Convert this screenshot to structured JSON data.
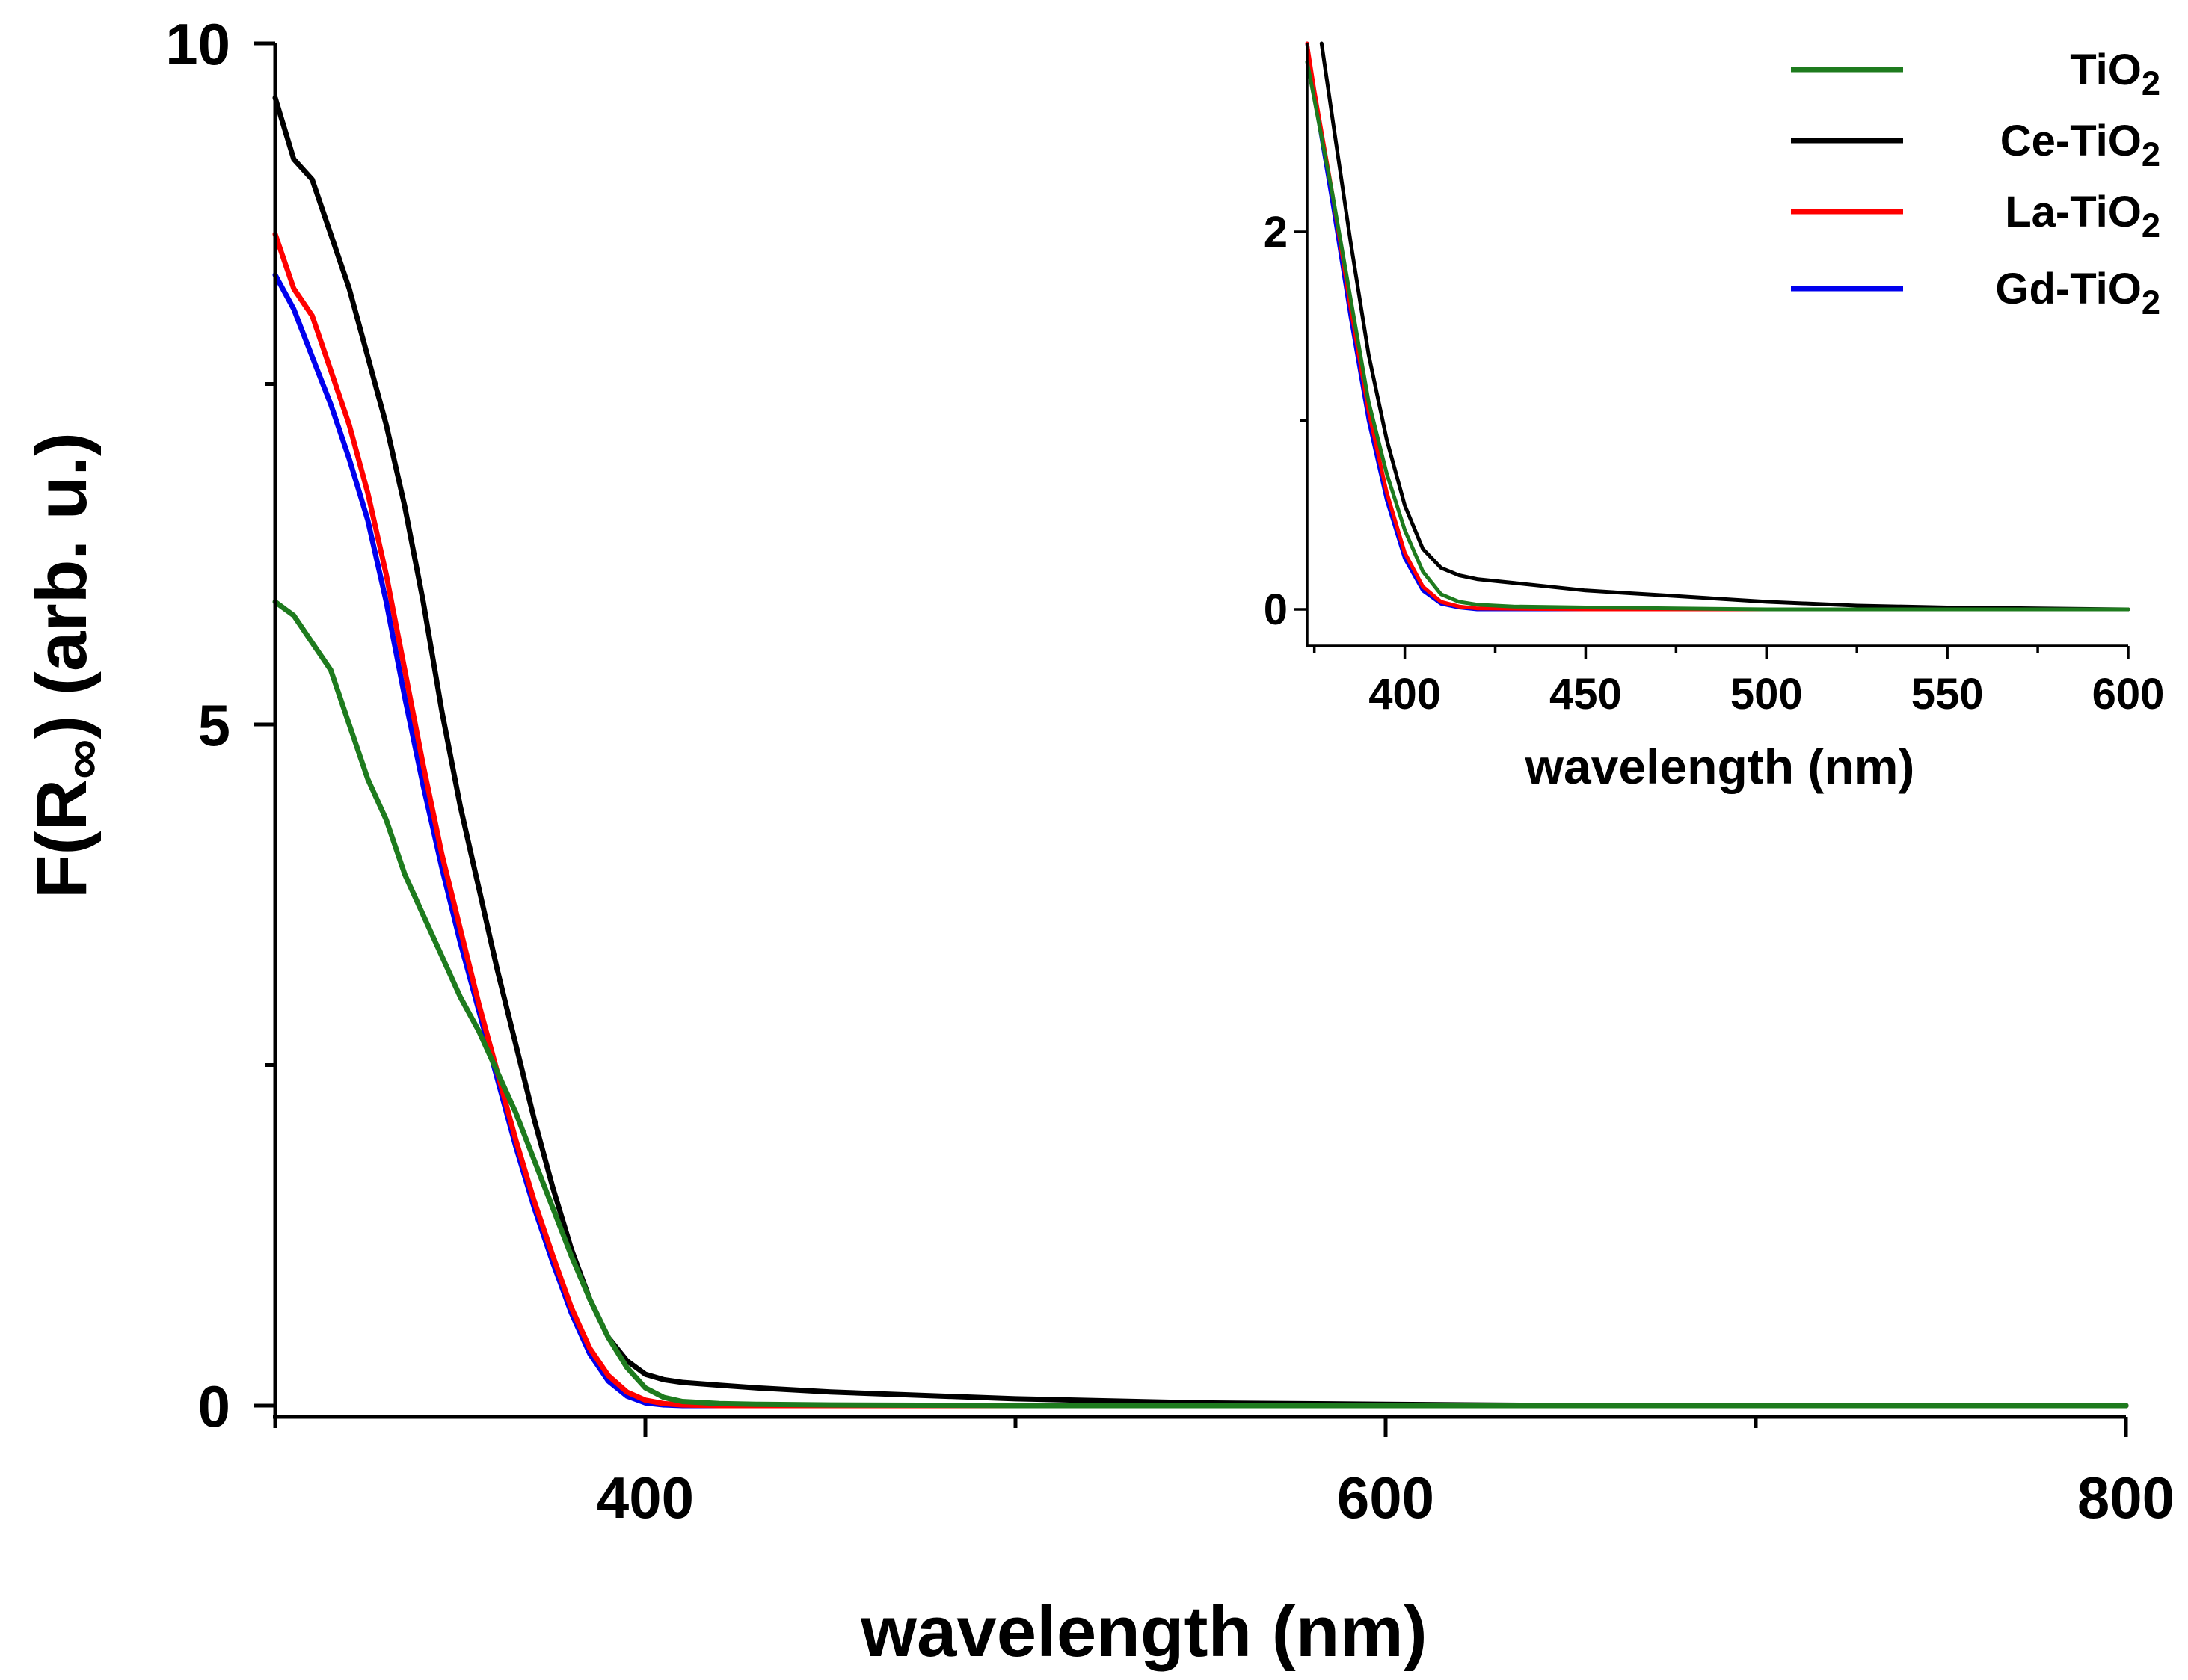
{
  "chart_data": [
    {
      "type": "line",
      "panel": "main",
      "xlabel": "wavelength (nm)",
      "ylabel_prefix": "F(R",
      "ylabel_subscript": "∞",
      "ylabel_suffix": ") (arb. u.)",
      "xlim": [
        300,
        800
      ],
      "ylim": [
        0,
        10
      ],
      "x_ticks": [
        400,
        600,
        800
      ],
      "y_ticks": [
        0,
        5,
        10
      ],
      "series": [
        {
          "name": "TiO2",
          "color": "#1e7b1e",
          "x": [
            300,
            305,
            310,
            315,
            320,
            325,
            330,
            335,
            340,
            345,
            350,
            355,
            360,
            365,
            370,
            375,
            380,
            385,
            390,
            395,
            400,
            405,
            410,
            420,
            430,
            450,
            500,
            600,
            700,
            800
          ],
          "y": [
            5.9,
            5.8,
            5.6,
            5.4,
            5.0,
            4.6,
            4.3,
            3.9,
            3.6,
            3.3,
            3.0,
            2.75,
            2.45,
            2.15,
            1.8,
            1.45,
            1.1,
            0.78,
            0.5,
            0.28,
            0.13,
            0.06,
            0.03,
            0.015,
            0.01,
            0.005,
            0.0,
            0.0,
            0.0,
            0.0
          ]
        },
        {
          "name": "Ce-TiO2",
          "color": "#000000",
          "x": [
            300,
            305,
            310,
            315,
            320,
            325,
            330,
            335,
            340,
            345,
            350,
            355,
            360,
            365,
            370,
            375,
            380,
            385,
            390,
            395,
            400,
            405,
            410,
            420,
            430,
            450,
            500,
            550,
            600,
            650,
            700,
            800
          ],
          "y": [
            9.6,
            9.15,
            9.0,
            8.6,
            8.2,
            7.7,
            7.2,
            6.6,
            5.9,
            5.1,
            4.4,
            3.8,
            3.2,
            2.65,
            2.1,
            1.6,
            1.15,
            0.78,
            0.5,
            0.33,
            0.23,
            0.19,
            0.17,
            0.15,
            0.13,
            0.1,
            0.05,
            0.02,
            0.01,
            0.0,
            0.0,
            0.0
          ]
        },
        {
          "name": "La-TiO2",
          "color": "#ff0000",
          "x": [
            300,
            305,
            310,
            315,
            320,
            325,
            330,
            335,
            340,
            345,
            350,
            355,
            360,
            365,
            370,
            375,
            380,
            385,
            390,
            395,
            400,
            405,
            410,
            420,
            450,
            500,
            600,
            800
          ],
          "y": [
            8.6,
            8.2,
            8.0,
            7.6,
            7.2,
            6.7,
            6.1,
            5.4,
            4.7,
            4.05,
            3.5,
            2.95,
            2.45,
            1.95,
            1.5,
            1.1,
            0.72,
            0.42,
            0.22,
            0.1,
            0.04,
            0.015,
            0.005,
            0.0,
            0.0,
            0.0,
            0.0,
            0.0
          ]
        },
        {
          "name": "Gd-TiO2",
          "color": "#0000ee",
          "x": [
            300,
            305,
            310,
            315,
            320,
            325,
            330,
            335,
            340,
            345,
            350,
            355,
            360,
            365,
            370,
            375,
            380,
            385,
            390,
            395,
            400,
            405,
            410,
            420,
            450,
            500,
            600,
            800
          ],
          "y": [
            8.3,
            8.05,
            7.7,
            7.35,
            6.95,
            6.5,
            5.9,
            5.2,
            4.55,
            3.95,
            3.4,
            2.9,
            2.4,
            1.9,
            1.45,
            1.05,
            0.68,
            0.38,
            0.18,
            0.07,
            0.02,
            0.005,
            0.0,
            0.0,
            0.0,
            0.0,
            0.0,
            0.0
          ]
        }
      ]
    },
    {
      "type": "line",
      "panel": "inset",
      "xlabel": "wavelength (nm)",
      "ylabel": "",
      "xlim": [
        373,
        600
      ],
      "ylim": [
        -0.2,
        3.0
      ],
      "x_ticks": [
        400,
        450,
        500,
        550,
        600
      ],
      "y_ticks": [
        0,
        2
      ],
      "legend_position": "top-right",
      "series": [
        {
          "name": "TiO2",
          "color": "#1e7b1e",
          "x": [
            373,
            375,
            380,
            385,
            390,
            395,
            400,
            405,
            410,
            415,
            420,
            430,
            450,
            500,
            600
          ],
          "y": [
            2.9,
            2.7,
            2.2,
            1.65,
            1.1,
            0.72,
            0.42,
            0.2,
            0.08,
            0.04,
            0.025,
            0.015,
            0.01,
            0.0,
            0.0
          ]
        },
        {
          "name": "Ce-TiO2",
          "color": "#000000",
          "x": [
            377,
            380,
            385,
            390,
            395,
            400,
            405,
            410,
            415,
            420,
            430,
            440,
            450,
            475,
            500,
            525,
            550,
            575,
            600
          ],
          "y": [
            3.0,
            2.6,
            1.95,
            1.35,
            0.9,
            0.55,
            0.32,
            0.22,
            0.18,
            0.16,
            0.14,
            0.12,
            0.1,
            0.07,
            0.04,
            0.02,
            0.01,
            0.005,
            0.0
          ]
        },
        {
          "name": "La-TiO2",
          "color": "#ff0000",
          "x": [
            373,
            375,
            380,
            385,
            390,
            395,
            400,
            405,
            410,
            415,
            420,
            450,
            600
          ],
          "y": [
            3.0,
            2.75,
            2.2,
            1.6,
            1.05,
            0.62,
            0.3,
            0.12,
            0.04,
            0.015,
            0.005,
            0.0,
            0.0
          ]
        },
        {
          "name": "Gd-TiO2",
          "color": "#0000ee",
          "x": [
            373,
            375,
            380,
            385,
            390,
            395,
            400,
            405,
            410,
            415,
            420,
            450,
            600
          ],
          "y": [
            3.0,
            2.72,
            2.15,
            1.55,
            1.0,
            0.58,
            0.27,
            0.1,
            0.03,
            0.01,
            0.0,
            0.0,
            0.0
          ]
        }
      ]
    }
  ],
  "legend": {
    "items": [
      {
        "prefix": "TiO",
        "subscript": "2",
        "color": "#1e7b1e"
      },
      {
        "prefix": "Ce-TiO",
        "subscript": "2",
        "color": "#000000"
      },
      {
        "prefix": "La-TiO",
        "subscript": "2",
        "color": "#ff0000"
      },
      {
        "prefix": "Gd-TiO",
        "subscript": "2",
        "color": "#0000ee"
      }
    ]
  }
}
